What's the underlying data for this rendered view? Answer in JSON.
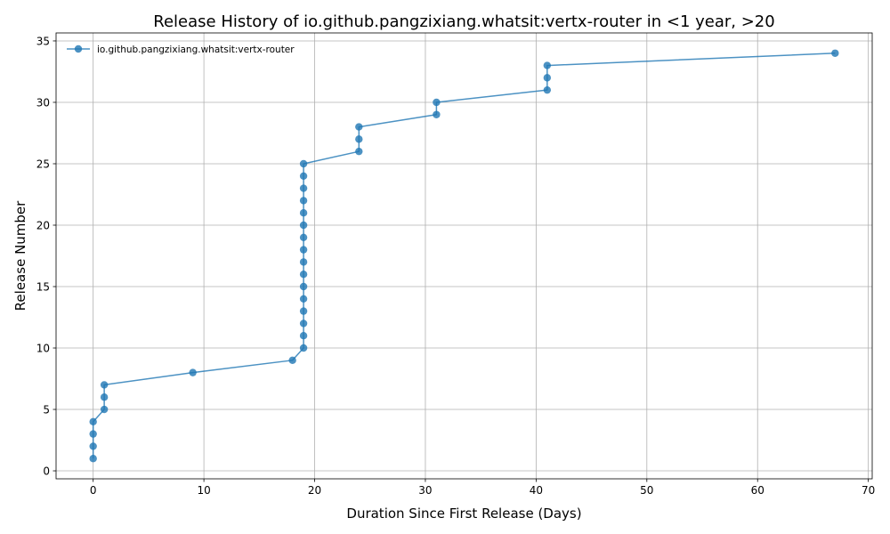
{
  "chart_data": {
    "type": "line",
    "title": "Release History of io.github.pangzixiang.whatsit:vertx-router in <1 year, >20",
    "xlabel": "Duration Since First Release (Days)",
    "ylabel": "Release Number",
    "xlim": [
      -3.35,
      70.35
    ],
    "ylim": [
      -0.65,
      35.65
    ],
    "xticks": [
      0,
      10,
      20,
      30,
      40,
      50,
      60,
      70
    ],
    "yticks": [
      0,
      5,
      10,
      15,
      20,
      25,
      30,
      35
    ],
    "grid": true,
    "legend_position": "top-left",
    "series": [
      {
        "name": "io.github.pangzixiang.whatsit:vertx-router",
        "color": "#1f77b4",
        "marker": "circle",
        "x": [
          0,
          0,
          0,
          0,
          1,
          1,
          1,
          9,
          18,
          19,
          19,
          19,
          19,
          19,
          19,
          19,
          19,
          19,
          19,
          19,
          19,
          19,
          19,
          19,
          19,
          24,
          24,
          24,
          31,
          31,
          41,
          41,
          41,
          67
        ],
        "y": [
          1,
          2,
          3,
          4,
          5,
          6,
          7,
          8,
          9,
          10,
          11,
          12,
          13,
          14,
          15,
          16,
          17,
          18,
          19,
          20,
          21,
          22,
          23,
          24,
          25,
          26,
          27,
          28,
          29,
          30,
          31,
          32,
          33,
          34
        ]
      }
    ]
  }
}
